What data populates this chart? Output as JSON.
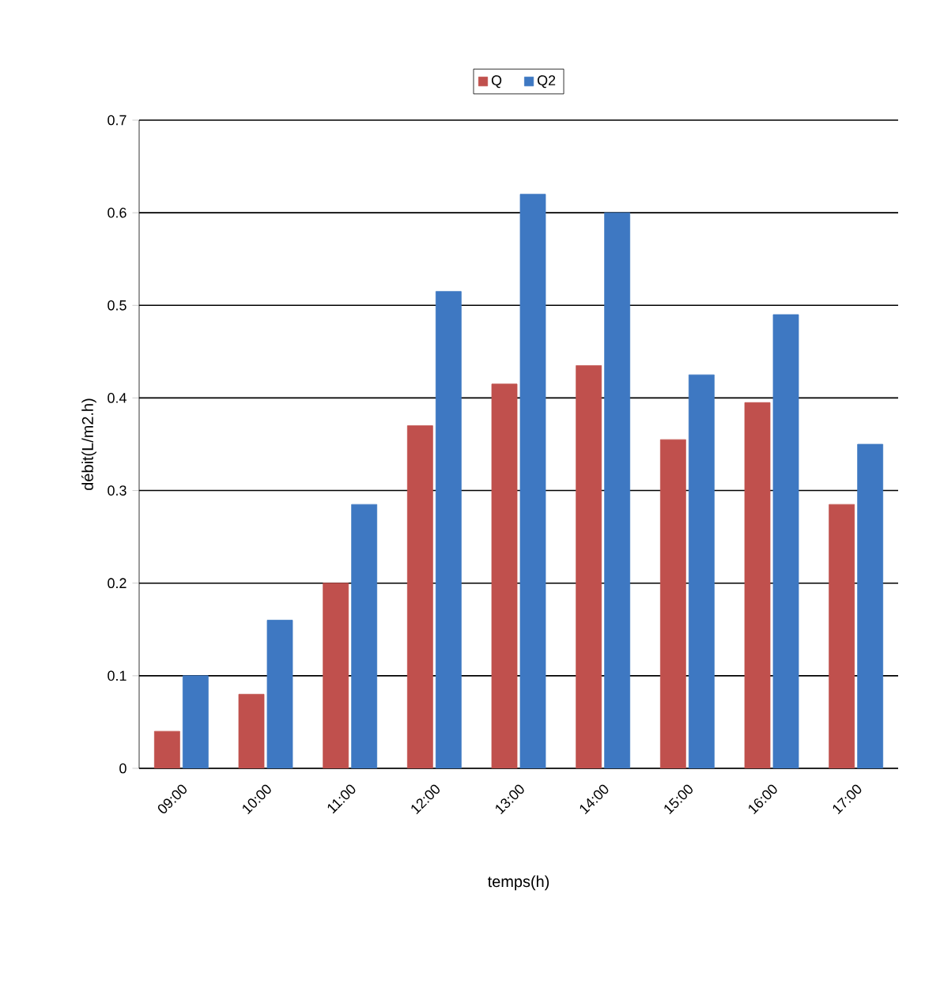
{
  "chart_data": {
    "type": "bar",
    "xlabel": "temps(h)",
    "ylabel": "débit(L/m2.h)",
    "categories": [
      "09:00",
      "10:00",
      "11:00",
      "12:00",
      "13:00",
      "14:00",
      "15:00",
      "16:00",
      "17:00"
    ],
    "series": [
      {
        "name": "Q",
        "color": "#c0504d",
        "values": [
          0.04,
          0.08,
          0.2,
          0.37,
          0.415,
          0.435,
          0.355,
          0.395,
          0.285
        ]
      },
      {
        "name": "Q2",
        "color": "#3e78c2",
        "values": [
          0.1,
          0.16,
          0.285,
          0.515,
          0.62,
          0.6,
          0.425,
          0.49,
          0.35
        ]
      }
    ],
    "ylim": [
      0,
      0.7
    ],
    "yticks": [
      0,
      0.1,
      0.2,
      0.3,
      0.4,
      0.5,
      0.6,
      0.7
    ],
    "grid": "y",
    "legend": "top"
  }
}
